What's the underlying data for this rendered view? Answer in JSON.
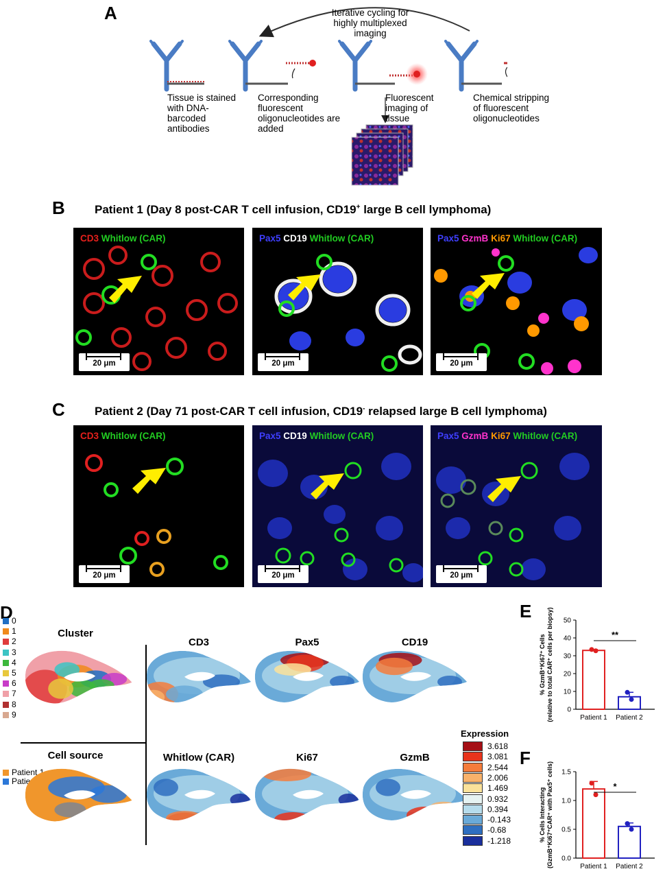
{
  "panel_labels": {
    "A": "A",
    "B": "B",
    "C": "C",
    "D": "D",
    "E": "E",
    "F": "F"
  },
  "panel_a": {
    "cycle_text": "Iterative cycling for highly multiplexed imaging",
    "step1": "Tissue is stained with DNA-barcoded antibodies",
    "step2": "Corresponding fluorescent oligonucleotides are added",
    "step3": "Fluorescent imaging of tissue",
    "step4": "Chemical stripping of fluorescent oligonucleotides"
  },
  "panel_b": {
    "title": "Patient 1 (Day 8 post-CAR T cell infusion, CD19",
    "title_sup": "+",
    "title_end": " large B cell lymphoma)"
  },
  "panel_c": {
    "title": "Patient 2 (Day 71 post-CAR T cell infusion, CD19",
    "title_sup": "-",
    "title_end": " relapsed large B cell lymphoma)"
  },
  "channels": {
    "cd3": "CD3",
    "whitlow": "Whitlow (CAR)",
    "pax5": "Pax5",
    "cd19": "CD19",
    "gzmb": "GzmB",
    "ki67": "Ki67"
  },
  "colors": {
    "red": "#e8201c",
    "green": "#22cc22",
    "blue": "#3f3fff",
    "white": "#ffffff",
    "magenta": "#ff33cc",
    "orange": "#ff9900",
    "arrow": "#ffee00"
  },
  "scale_bar": "20 μm",
  "panel_d": {
    "cluster_title": "Cluster",
    "clusters": [
      "0",
      "1",
      "2",
      "3",
      "4",
      "5",
      "6",
      "7",
      "8",
      "9"
    ],
    "cluster_colors": [
      "#1f6fc4",
      "#f08a1c",
      "#e03c3c",
      "#3cc4c4",
      "#3cb83c",
      "#e8c83c",
      "#c83cc8",
      "#f0a0a8",
      "#b03030",
      "#d8a890"
    ],
    "source_title": "Cell source",
    "sources": [
      "Patient 1",
      "Patient 2"
    ],
    "source_colors": [
      "#f0962c",
      "#2c78d8"
    ],
    "markers": [
      "CD3",
      "Pax5",
      "CD19",
      "Whitlow (CAR)",
      "Ki67",
      "GzmB"
    ],
    "expression_title": "Expression",
    "expression_values": [
      "3.618",
      "3.081",
      "2.544",
      "2.006",
      "1.469",
      "0.932",
      "0.394",
      "-0.143",
      "-0.68",
      "-1.218"
    ],
    "expression_colors": [
      "#a50f15",
      "#e8341c",
      "#f47c3c",
      "#f9b26a",
      "#fbe29a",
      "#e6f3f2",
      "#b6dcec",
      "#6aaad8",
      "#2f6fc0",
      "#1a2f9c"
    ]
  },
  "chart_data": [
    {
      "type": "bar",
      "panel": "E",
      "categories": [
        "Patient 1",
        "Patient 2"
      ],
      "values": [
        33,
        7
      ],
      "points": [
        [
          33.5,
          32.8
        ],
        [
          9.5,
          5.5
        ]
      ],
      "error": [
        0.5,
        2.5
      ],
      "colors": [
        "#e02020",
        "#2020c0"
      ],
      "ylabel": "% GzmB⁺Ki67⁺ Cells",
      "ylabel2": "(relative to total CAR⁺ cells per biopsy)",
      "ylim": [
        0,
        50
      ],
      "yticks": [
        "0",
        "10",
        "20",
        "30",
        "40",
        "50"
      ],
      "significance": "**"
    },
    {
      "type": "bar",
      "panel": "F",
      "categories": [
        "Patient 1",
        "Patient 2"
      ],
      "values": [
        1.2,
        0.55
      ],
      "points": [
        [
          1.3,
          1.1
        ],
        [
          0.6,
          0.5
        ]
      ],
      "error": [
        0.13,
        0.06
      ],
      "colors": [
        "#e02020",
        "#2020c0"
      ],
      "ylabel": "% Cells Interacting",
      "ylabel2": "(GzmB⁺Ki67⁺CAR⁺ with Pax5⁺ cells)",
      "ylim": [
        0,
        1.5
      ],
      "yticks": [
        "0.0",
        "0.5",
        "1.0",
        "1.5"
      ],
      "significance": "*"
    }
  ]
}
